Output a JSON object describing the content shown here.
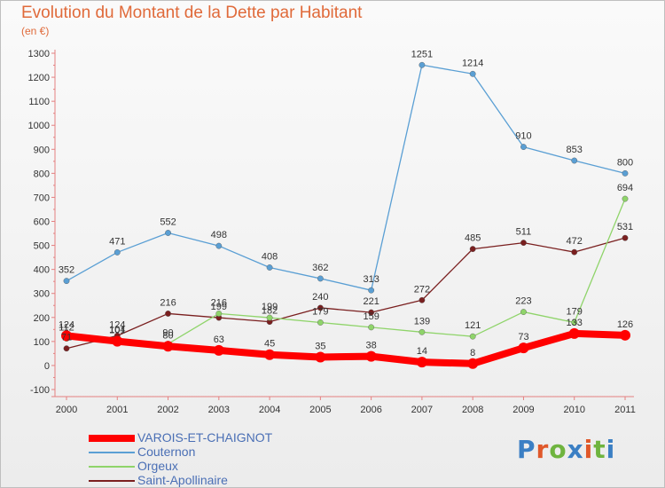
{
  "title": "Evolution du Montant de la Dette par Habitant",
  "subtitle": "(en €)",
  "logo": {
    "text": "Proxiti",
    "colors": [
      "#3b7fc4",
      "#e0582a",
      "#6fb43f",
      "#3b7fc4",
      "#e0582a",
      "#6fb43f",
      "#3b7fc4"
    ]
  },
  "chart_data": {
    "type": "line",
    "x": [
      "2000",
      "2001",
      "2002",
      "2003",
      "2004",
      "2005",
      "2006",
      "2007",
      "2008",
      "2009",
      "2010",
      "2011"
    ],
    "ylim": [
      -100,
      1300
    ],
    "yticks": [
      -100,
      0,
      100,
      200,
      300,
      400,
      500,
      600,
      700,
      800,
      900,
      1000,
      1100,
      1200,
      1300
    ],
    "grid": false,
    "legend_position": "bottom-left",
    "series": [
      {
        "name": "Saint-Apollinaire",
        "color": "#7a1f1f",
        "values": [
          71,
          124,
          216,
          199,
          182,
          240,
          221,
          272,
          485,
          511,
          472,
          531
        ]
      },
      {
        "name": "Orgeux",
        "color": "#8fd46a",
        "values": [
          112,
          104,
          90,
          216,
          199,
          179,
          159,
          139,
          121,
          223,
          179,
          694
        ]
      },
      {
        "name": "Couternon",
        "color": "#5a9fd4",
        "values": [
          352,
          471,
          552,
          498,
          408,
          362,
          313,
          1251,
          1214,
          910,
          853,
          800
        ]
      },
      {
        "name": "VAROIS-ET-CHAIGNOT",
        "color": "#ff0000",
        "values": [
          124,
          101,
          80,
          63,
          45,
          35,
          38,
          14,
          8,
          73,
          133,
          126
        ]
      }
    ]
  }
}
